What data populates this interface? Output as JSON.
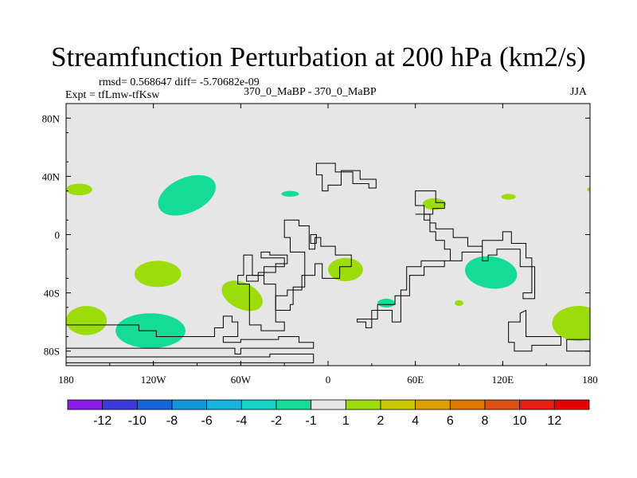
{
  "header": {
    "title": "Streamfunction Perturbation at 200 hPa (km2/s)",
    "rmsd_line": "rmsd= 0.568647 diff= -5.70682e-09",
    "expt_line": "Expt = tfLmw-tfKsw",
    "case_line": "370_0_MaBP - 370_0_MaBP",
    "season": "JJA"
  },
  "chart_data": {
    "type": "heatmap",
    "title": "Streamfunction Perturbation at 200 hPa (km2/s)",
    "xlim": [
      -180,
      180
    ],
    "ylim": [
      -90,
      90
    ],
    "x_ticks": [
      {
        "value": -180,
        "label": "180"
      },
      {
        "value": -120,
        "label": "120W"
      },
      {
        "value": -60,
        "label": "60W"
      },
      {
        "value": 0,
        "label": "0"
      },
      {
        "value": 60,
        "label": "60E"
      },
      {
        "value": 120,
        "label": "120E"
      },
      {
        "value": 180,
        "label": "180"
      }
    ],
    "y_ticks": [
      {
        "value": 80,
        "label": "80N"
      },
      {
        "value": 40,
        "label": "40N"
      },
      {
        "value": 0,
        "label": "0"
      },
      {
        "value": -40,
        "label": "40S"
      },
      {
        "value": -80,
        "label": "80S"
      }
    ],
    "background_color": "#e6e6e6",
    "colorbar": {
      "labels": [
        "-12",
        "-10",
        "-8",
        "-6",
        "-4",
        "-2",
        "-1",
        "1",
        "2",
        "4",
        "6",
        "8",
        "10",
        "12"
      ],
      "colors": [
        "#8a1ce6",
        "#3c3cdc",
        "#1464dc",
        "#1496dc",
        "#14b4dc",
        "#14d2c8",
        "#14dc96",
        "#e6e6e6",
        "#9cdc0a",
        "#c8c800",
        "#dca000",
        "#dc7800",
        "#dc5014",
        "#e61e14",
        "#e60000"
      ]
    },
    "regions": [
      {
        "name": "neg-north-pacific",
        "sign": "negative",
        "color": "#14dc96",
        "lon": -97,
        "lat": 27,
        "rlon": 21,
        "rlat": 12,
        "rotate": -24
      },
      {
        "name": "neg-south-pacific",
        "sign": "negative",
        "color": "#14dc96",
        "lon": -122,
        "lat": -66,
        "rlon": 24,
        "rlat": 12,
        "rotate": 0
      },
      {
        "name": "neg-indian-ocean",
        "sign": "negative",
        "color": "#14dc96",
        "lon": 112,
        "lat": -26,
        "rlon": 18,
        "rlat": 11,
        "rotate": 8
      },
      {
        "name": "neg-mediterranean",
        "sign": "negative",
        "color": "#14dc96",
        "lon": -26,
        "lat": 28,
        "rlon": 6,
        "rlat": 2,
        "rotate": 0
      },
      {
        "name": "neg-south-atlantic",
        "sign": "negative",
        "color": "#14dc96",
        "lon": 40,
        "lat": -47,
        "rlon": 6,
        "rlat": 3,
        "rotate": 0
      },
      {
        "name": "pos-dateline-north",
        "sign": "positive",
        "color": "#9cdc0a",
        "lon": -171,
        "lat": 31,
        "rlon": 9,
        "rlat": 4,
        "rotate": 0
      },
      {
        "name": "pos-south-pacific",
        "sign": "positive",
        "color": "#9cdc0a",
        "lon": -117,
        "lat": -27,
        "rlon": 16,
        "rlat": 9,
        "rotate": 0
      },
      {
        "name": "pos-south-dateline",
        "sign": "positive",
        "color": "#9cdc0a",
        "lon": -166,
        "lat": -59,
        "rlon": 14,
        "rlat": 10,
        "rotate": 0
      },
      {
        "name": "pos-south-america",
        "sign": "positive",
        "color": "#9cdc0a",
        "lon": -59,
        "lat": -42,
        "rlon": 15,
        "rlat": 9,
        "rotate": 26
      },
      {
        "name": "pos-africa",
        "sign": "positive",
        "color": "#9cdc0a",
        "lon": 12,
        "lat": -24,
        "rlon": 12,
        "rlat": 8,
        "rotate": 0
      },
      {
        "name": "pos-asia",
        "sign": "positive",
        "color": "#9cdc0a",
        "lon": 73,
        "lat": 21,
        "rlon": 8,
        "rlat": 4,
        "rotate": 0
      },
      {
        "name": "pos-east-asia",
        "sign": "positive",
        "color": "#9cdc0a",
        "lon": 124,
        "lat": 26,
        "rlon": 5,
        "rlat": 2,
        "rotate": 0
      },
      {
        "name": "pos-indian-small",
        "sign": "positive",
        "color": "#9cdc0a",
        "lon": 90,
        "lat": -47,
        "rlon": 3,
        "rlat": 2,
        "rotate": 0
      },
      {
        "name": "pos-south-east",
        "sign": "positive",
        "color": "#9cdc0a",
        "lon": 172,
        "lat": -61,
        "rlon": 18,
        "rlat": 12,
        "rotate": 0
      },
      {
        "name": "pos-dateline-east",
        "sign": "positive",
        "color": "#9cdc0a",
        "lon": 180,
        "lat": 31,
        "rlon": 2,
        "rlat": 1.5,
        "rotate": 0
      }
    ],
    "landmasks": [
      {
        "name": "north-polar-outline",
        "points": [
          [
            -8,
            49
          ],
          [
            5,
            49
          ],
          [
            5,
            43
          ],
          [
            17,
            43
          ],
          [
            17,
            35
          ],
          [
            28,
            35
          ],
          [
            28,
            32
          ],
          [
            33,
            32
          ],
          [
            33,
            38
          ],
          [
            22,
            38
          ],
          [
            22,
            44
          ],
          [
            9,
            44
          ],
          [
            9,
            34
          ],
          [
            0,
            34
          ],
          [
            0,
            30
          ],
          [
            -4,
            30
          ],
          [
            -4,
            41
          ],
          [
            -8,
            41
          ]
        ]
      },
      {
        "name": "africa-outline",
        "points": [
          [
            -30,
            10
          ],
          [
            -20,
            10
          ],
          [
            -20,
            6
          ],
          [
            -13,
            6
          ],
          [
            -13,
            -10
          ],
          [
            -9,
            -10
          ],
          [
            -9,
            -2
          ],
          [
            -5,
            -2
          ],
          [
            -5,
            -8
          ],
          [
            5,
            -8
          ],
          [
            5,
            -14
          ],
          [
            16,
            -14
          ],
          [
            16,
            -22
          ],
          [
            8,
            -22
          ],
          [
            8,
            -30
          ],
          [
            -4,
            -30
          ],
          [
            -4,
            -20
          ],
          [
            -9,
            -20
          ],
          [
            -9,
            -28
          ],
          [
            -18,
            -28
          ],
          [
            -18,
            -38
          ],
          [
            -28,
            -38
          ],
          [
            -28,
            -42
          ],
          [
            -36,
            -42
          ],
          [
            -36,
            -52
          ],
          [
            -26,
            -52
          ],
          [
            -26,
            -48
          ],
          [
            -24,
            -48
          ],
          [
            -24,
            -36
          ],
          [
            -16,
            -36
          ],
          [
            -16,
            -12
          ],
          [
            -26,
            -12
          ],
          [
            -26,
            -2
          ],
          [
            -30,
            -2
          ]
        ]
      },
      {
        "name": "asia-outline",
        "points": [
          [
            60,
            14
          ],
          [
            66,
            14
          ],
          [
            66,
            10
          ],
          [
            70,
            10
          ],
          [
            70,
            2
          ],
          [
            74,
            2
          ],
          [
            74,
            -4
          ],
          [
            80,
            -4
          ],
          [
            80,
            -10
          ],
          [
            84,
            -10
          ],
          [
            84,
            -18
          ],
          [
            64,
            -18
          ],
          [
            64,
            -22
          ],
          [
            54,
            -22
          ],
          [
            54,
            -38
          ],
          [
            50,
            -38
          ],
          [
            50,
            -60
          ],
          [
            44,
            -60
          ],
          [
            44,
            -52
          ],
          [
            30,
            -52
          ],
          [
            30,
            -64
          ],
          [
            26,
            -64
          ],
          [
            26,
            -60
          ],
          [
            20,
            -60
          ],
          [
            20,
            -58
          ],
          [
            34,
            -58
          ],
          [
            34,
            -48
          ],
          [
            46,
            -48
          ],
          [
            46,
            -42
          ],
          [
            56,
            -42
          ],
          [
            56,
            -28
          ],
          [
            66,
            -28
          ],
          [
            66,
            -22
          ],
          [
            80,
            -22
          ],
          [
            80,
            -18
          ],
          [
            92,
            -18
          ],
          [
            92,
            -12
          ],
          [
            106,
            -12
          ],
          [
            106,
            -4
          ],
          [
            120,
            -4
          ],
          [
            120,
            2
          ],
          [
            126,
            2
          ],
          [
            126,
            -6
          ],
          [
            136,
            -6
          ],
          [
            136,
            -16
          ],
          [
            140,
            -16
          ],
          [
            140,
            -40
          ],
          [
            134,
            -40
          ],
          [
            134,
            -44
          ],
          [
            142,
            -44
          ],
          [
            142,
            -22
          ],
          [
            132,
            -22
          ],
          [
            132,
            -10
          ],
          [
            116,
            -10
          ],
          [
            116,
            -14
          ],
          [
            110,
            -14
          ],
          [
            110,
            -18
          ],
          [
            106,
            -18
          ],
          [
            106,
            -8
          ],
          [
            96,
            -8
          ],
          [
            96,
            -2
          ],
          [
            86,
            -2
          ],
          [
            86,
            4
          ],
          [
            74,
            4
          ],
          [
            74,
            8
          ],
          [
            70,
            8
          ],
          [
            70,
            14
          ]
        ]
      },
      {
        "name": "australia-outline",
        "points": [
          [
            136,
            -52
          ],
          [
            136,
            -70
          ],
          [
            160,
            -70
          ],
          [
            160,
            -76
          ],
          [
            140,
            -76
          ],
          [
            140,
            -80
          ],
          [
            128,
            -80
          ],
          [
            128,
            -74
          ],
          [
            124,
            -74
          ],
          [
            124,
            -60
          ],
          [
            132,
            -60
          ],
          [
            132,
            -54
          ]
        ]
      },
      {
        "name": "antarctic-outline",
        "points": [
          [
            -180,
            -62
          ],
          [
            -130,
            -62
          ],
          [
            -130,
            -66
          ],
          [
            -118,
            -66
          ],
          [
            -118,
            -70
          ],
          [
            -78,
            -70
          ],
          [
            -78,
            -64
          ],
          [
            -72,
            -64
          ],
          [
            -72,
            -56
          ],
          [
            -66,
            -56
          ],
          [
            -66,
            -60
          ],
          [
            -62,
            -60
          ],
          [
            -62,
            -70
          ],
          [
            -72,
            -70
          ],
          [
            -72,
            -74
          ],
          [
            -60,
            -74
          ],
          [
            -60,
            -72
          ],
          [
            -34,
            -72
          ],
          [
            -34,
            -70
          ],
          [
            -20,
            -70
          ],
          [
            -20,
            -74
          ],
          [
            -10,
            -74
          ],
          [
            -10,
            -78
          ],
          [
            -60,
            -78
          ],
          [
            -60,
            -82
          ],
          [
            -64,
            -82
          ],
          [
            -64,
            -78
          ],
          [
            -180,
            -78
          ]
        ]
      },
      {
        "name": "antarctic-lower",
        "points": [
          [
            -180,
            -84
          ],
          [
            -40,
            -84
          ],
          [
            -40,
            -82
          ],
          [
            -10,
            -82
          ],
          [
            -10,
            -88
          ],
          [
            -180,
            -88
          ]
        ]
      },
      {
        "name": "east-antarctic",
        "points": [
          [
            180,
            -72
          ],
          [
            164,
            -72
          ],
          [
            164,
            -80
          ],
          [
            180,
            -80
          ]
        ]
      },
      {
        "name": "south-pacific-chain",
        "points": [
          [
            -46,
            -12
          ],
          [
            -46,
            -16
          ],
          [
            -30,
            -16
          ],
          [
            -30,
            -22
          ],
          [
            -44,
            -22
          ],
          [
            -44,
            -28
          ],
          [
            -56,
            -28
          ],
          [
            -56,
            -32
          ],
          [
            -48,
            -32
          ],
          [
            -48,
            -26
          ],
          [
            -36,
            -26
          ],
          [
            -36,
            -20
          ],
          [
            -28,
            -20
          ],
          [
            -28,
            -14
          ],
          [
            -40,
            -14
          ],
          [
            -40,
            -12
          ]
        ]
      },
      {
        "name": "south-america-coast",
        "points": [
          [
            -52,
            -14
          ],
          [
            -52,
            -28
          ],
          [
            -44,
            -28
          ],
          [
            -44,
            -34
          ],
          [
            -36,
            -34
          ],
          [
            -36,
            -60
          ],
          [
            -30,
            -60
          ],
          [
            -30,
            -66
          ],
          [
            -46,
            -66
          ],
          [
            -46,
            -62
          ],
          [
            -54,
            -62
          ],
          [
            -54,
            -34
          ],
          [
            -62,
            -34
          ],
          [
            -62,
            -28
          ],
          [
            -58,
            -28
          ],
          [
            -58,
            -14
          ]
        ]
      },
      {
        "name": "atlantic-island",
        "points": [
          [
            -12,
            0
          ],
          [
            -12,
            -6
          ],
          [
            -8,
            -6
          ],
          [
            -8,
            0
          ]
        ]
      },
      {
        "name": "east-asia-north",
        "points": [
          [
            60,
            30
          ],
          [
            74,
            30
          ],
          [
            74,
            22
          ],
          [
            80,
            22
          ],
          [
            80,
            18
          ],
          [
            72,
            18
          ],
          [
            72,
            14
          ],
          [
            66,
            14
          ],
          [
            66,
            20
          ],
          [
            60,
            20
          ]
        ]
      }
    ]
  }
}
